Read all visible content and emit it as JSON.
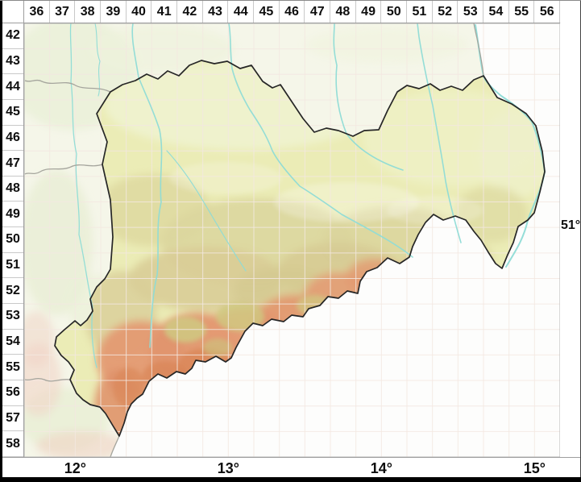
{
  "grid": {
    "column_labels": [
      "36",
      "37",
      "38",
      "39",
      "40",
      "41",
      "42",
      "43",
      "44",
      "45",
      "46",
      "47",
      "48",
      "49",
      "50",
      "51",
      "52",
      "53",
      "54",
      "55",
      "56"
    ],
    "row_labels": [
      "42",
      "43",
      "44",
      "45",
      "46",
      "47",
      "48",
      "49",
      "50",
      "51",
      "52",
      "53",
      "54",
      "55",
      "56",
      "57",
      "58"
    ]
  },
  "axes": {
    "bottom_labels": [
      "12°",
      "13°",
      "14°",
      "15°"
    ],
    "right_label": "51°"
  },
  "map": {
    "region_name_hint": "",
    "colors": {
      "outside_land": "#f5f6e9",
      "foreign_white": "#fdfdfc",
      "lowland": "#ebecb6",
      "midland": "#dcd79e",
      "upland": "#e3996f",
      "river": "#8fdcd6",
      "state_border": "#262626",
      "neighbor_border": "#a5a59d",
      "grid_line": "#f4e8e1"
    }
  }
}
